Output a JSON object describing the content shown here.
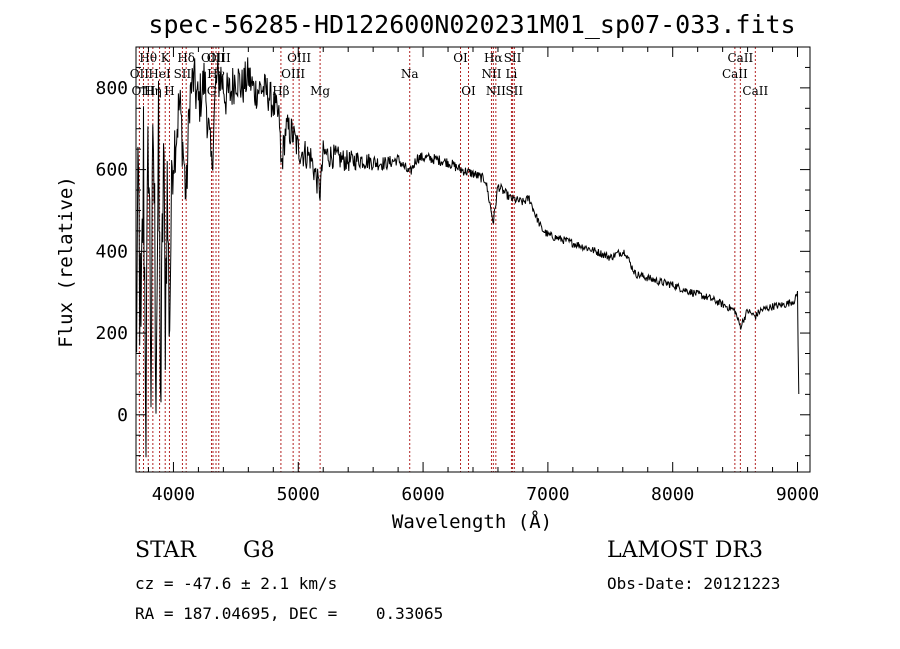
{
  "chart_data": {
    "type": "line",
    "title": "spec-56285-HD122600N020231M01_sp07-033.fits",
    "xlabel": "Wavelength (Å)",
    "ylabel": "Flux (relative)",
    "xlim": [
      3700,
      9100
    ],
    "ylim": [
      -140,
      900
    ],
    "xticks": [
      4000,
      5000,
      6000,
      7000,
      8000,
      9000
    ],
    "yticks": [
      0,
      200,
      400,
      600,
      800
    ],
    "line_color": "#000000",
    "marker_color": "#b22222",
    "spectral_lines": [
      {
        "label": "OII",
        "wave": 3727,
        "row": 1
      },
      {
        "label": "Hθ",
        "wave": 3798,
        "row": 0
      },
      {
        "label": "OIII",
        "wave": 3760,
        "row": 2
      },
      {
        "label": "Hη",
        "wave": 3835,
        "row": 2
      },
      {
        "label": "HeI",
        "wave": 3889,
        "row": 1
      },
      {
        "label": "K",
        "wave": 3934,
        "row": 0
      },
      {
        "label": "H",
        "wave": 3968,
        "row": 2
      },
      {
        "label": "SII",
        "wave": 4072,
        "row": 1
      },
      {
        "label": "Hδ",
        "wave": 4102,
        "row": 0
      },
      {
        "label": "G",
        "wave": 4305,
        "row": 2
      },
      {
        "label": "OIII",
        "wave": 4317,
        "row": 0
      },
      {
        "label": "Hγ",
        "wave": 4341,
        "row": 1
      },
      {
        "label": "OIII",
        "wave": 4363,
        "row": 0
      },
      {
        "label": "Hβ",
        "wave": 4861,
        "row": 2
      },
      {
        "label": "OIII",
        "wave": 4959,
        "row": 1
      },
      {
        "label": "OIII",
        "wave": 5007,
        "row": 0
      },
      {
        "label": "Mg",
        "wave": 5175,
        "row": 2
      },
      {
        "label": "Na",
        "wave": 5893,
        "row": 1
      },
      {
        "label": "OI",
        "wave": 6300,
        "row": 0
      },
      {
        "label": "OI",
        "wave": 6364,
        "row": 2
      },
      {
        "label": "NII",
        "wave": 6548,
        "row": 1
      },
      {
        "label": "Hα",
        "wave": 6563,
        "row": 0
      },
      {
        "label": "NII",
        "wave": 6583,
        "row": 2
      },
      {
        "label": "Li",
        "wave": 6708,
        "row": 1
      },
      {
        "label": "SII",
        "wave": 6717,
        "row": 0
      },
      {
        "label": "SII",
        "wave": 6731,
        "row": 2
      },
      {
        "label": "CaII",
        "wave": 8498,
        "row": 1
      },
      {
        "label": "CaII",
        "wave": 8542,
        "row": 0
      },
      {
        "label": "CaII",
        "wave": 8662,
        "row": 2
      }
    ],
    "spectrum": {
      "anchors": [
        [
          3700,
          150
        ],
        [
          3720,
          520
        ],
        [
          3740,
          120
        ],
        [
          3760,
          620
        ],
        [
          3780,
          30
        ],
        [
          3800,
          720
        ],
        [
          3820,
          120
        ],
        [
          3840,
          680
        ],
        [
          3860,
          160
        ],
        [
          3880,
          600
        ],
        [
          3900,
          60
        ],
        [
          3920,
          650
        ],
        [
          3934,
          230
        ],
        [
          3950,
          560
        ],
        [
          3968,
          200
        ],
        [
          3990,
          620
        ],
        [
          4020,
          690
        ],
        [
          4050,
          760
        ],
        [
          4080,
          640
        ],
        [
          4102,
          520
        ],
        [
          4130,
          780
        ],
        [
          4160,
          820
        ],
        [
          4200,
          760
        ],
        [
          4250,
          820
        ],
        [
          4305,
          600
        ],
        [
          4340,
          810
        ],
        [
          4380,
          830
        ],
        [
          4420,
          780
        ],
        [
          4460,
          790
        ],
        [
          4500,
          830
        ],
        [
          4550,
          800
        ],
        [
          4600,
          830
        ],
        [
          4650,
          790
        ],
        [
          4700,
          800
        ],
        [
          4750,
          790
        ],
        [
          4800,
          760
        ],
        [
          4850,
          720
        ],
        [
          4861,
          600
        ],
        [
          4900,
          700
        ],
        [
          4950,
          690
        ],
        [
          5000,
          650
        ],
        [
          5050,
          640
        ],
        [
          5100,
          630
        ],
        [
          5175,
          545
        ],
        [
          5200,
          640
        ],
        [
          5300,
          630
        ],
        [
          5400,
          620
        ],
        [
          5500,
          625
        ],
        [
          5600,
          618
        ],
        [
          5700,
          615
        ],
        [
          5800,
          625
        ],
        [
          5893,
          590
        ],
        [
          5950,
          628
        ],
        [
          6000,
          630
        ],
        [
          6100,
          625
        ],
        [
          6200,
          618
        ],
        [
          6300,
          600
        ],
        [
          6400,
          590
        ],
        [
          6500,
          575
        ],
        [
          6563,
          470
        ],
        [
          6600,
          560
        ],
        [
          6700,
          530
        ],
        [
          6800,
          520
        ],
        [
          6850,
          530
        ],
        [
          6900,
          490
        ],
        [
          6950,
          455
        ],
        [
          7000,
          440
        ],
        [
          7100,
          430
        ],
        [
          7200,
          420
        ],
        [
          7300,
          410
        ],
        [
          7400,
          398
        ],
        [
          7500,
          385
        ],
        [
          7560,
          395
        ],
        [
          7620,
          400
        ],
        [
          7660,
          370
        ],
        [
          7700,
          345
        ],
        [
          7800,
          335
        ],
        [
          7900,
          325
        ],
        [
          8000,
          318
        ],
        [
          8100,
          305
        ],
        [
          8200,
          295
        ],
        [
          8300,
          285
        ],
        [
          8400,
          270
        ],
        [
          8498,
          255
        ],
        [
          8542,
          215
        ],
        [
          8600,
          255
        ],
        [
          8662,
          240
        ],
        [
          8700,
          255
        ],
        [
          8800,
          265
        ],
        [
          8900,
          270
        ],
        [
          8980,
          280
        ],
        [
          9000,
          300
        ],
        [
          9010,
          50
        ]
      ],
      "step": 5,
      "noise": [
        [
          3700,
          230
        ],
        [
          3900,
          230
        ],
        [
          4000,
          90
        ],
        [
          4100,
          70
        ],
        [
          4400,
          60
        ],
        [
          4700,
          45
        ],
        [
          5000,
          40
        ],
        [
          5300,
          30
        ],
        [
          5800,
          14
        ],
        [
          6500,
          12
        ],
        [
          7000,
          10
        ],
        [
          9000,
          9
        ]
      ]
    }
  },
  "info": {
    "object_class": "STAR",
    "subclass": "G8",
    "survey": "LAMOST DR3",
    "cz": "cz = -47.6 ± 2.1 km/s",
    "obs_date": "Obs-Date: 20121223",
    "coords": "RA = 187.04695, DEC =    0.33065"
  }
}
